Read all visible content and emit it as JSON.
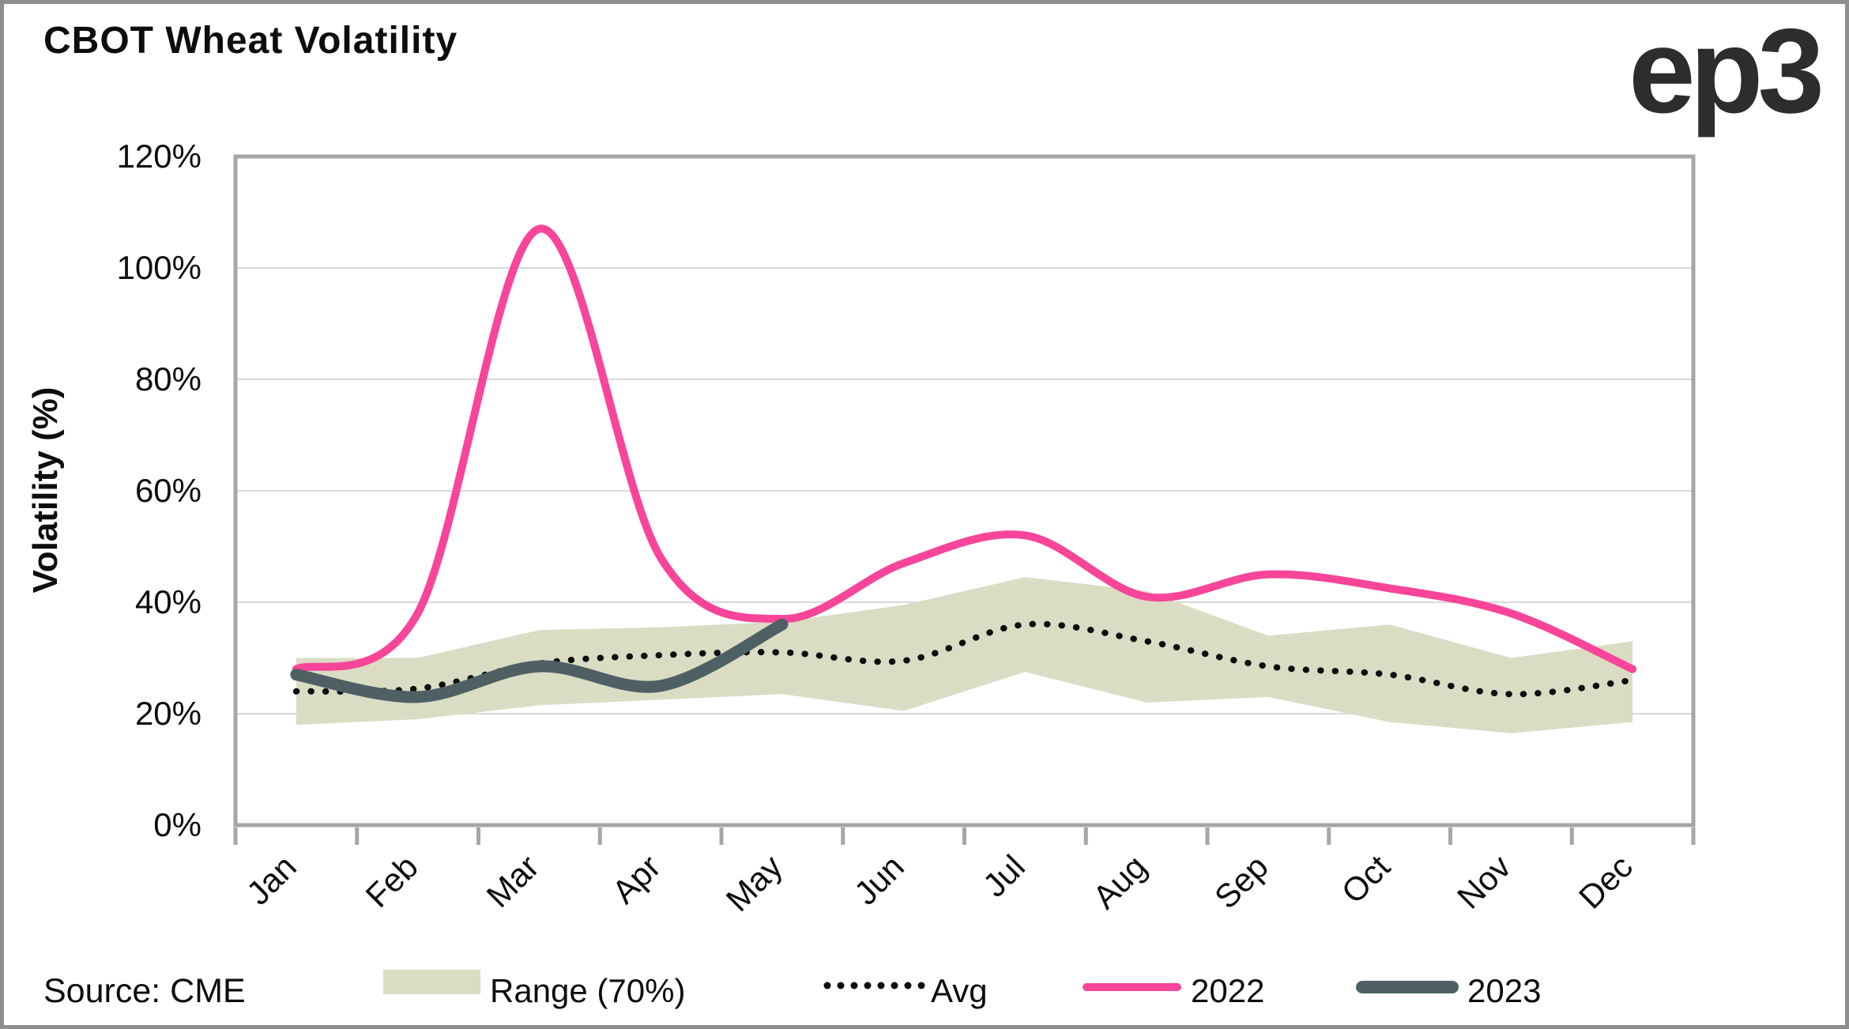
{
  "header": {
    "title": "CBOT Wheat Volatility",
    "logo": "ep3"
  },
  "footer": {
    "source": "Source: CME"
  },
  "legend": [
    {
      "label": "Range (70%)"
    },
    {
      "label": "Avg"
    },
    {
      "label": "2022"
    },
    {
      "label": "2023"
    }
  ],
  "colors": {
    "band": "#dadcc4",
    "avg": "#0d0d0d",
    "line2022": "#f8459a",
    "line2023": "#4e6064",
    "gridline": "#d9d9d9",
    "axis": "#a6a6a6",
    "border": "#8e8e8e",
    "text": "#0d0d0d",
    "logo": "#2d2d2d"
  },
  "chart_data": {
    "type": "line",
    "title": "CBOT Wheat Volatility",
    "xlabel": "",
    "ylabel": "Volatility (%)",
    "x_categories": [
      "Jan",
      "Feb",
      "Mar",
      "Apr",
      "May",
      "Jun",
      "Jul",
      "Aug",
      "Sep",
      "Oct",
      "Nov",
      "Dec"
    ],
    "y_ticks": [
      "120%",
      "100%",
      "80%",
      "60%",
      "40%",
      "20%",
      "0%"
    ],
    "ylim": [
      0,
      120
    ],
    "grid": "horizontal",
    "legend_position": "bottom",
    "series": [
      {
        "name": "Range (70%)",
        "type": "band",
        "top": [
          30,
          30,
          35,
          35.5,
          36.5,
          39.5,
          44.5,
          42,
          34,
          36,
          30,
          33
        ],
        "bottom": [
          18,
          19,
          21.5,
          22.5,
          23.5,
          20.5,
          27.5,
          22,
          23,
          18.5,
          16.5,
          18.5
        ]
      },
      {
        "name": "Avg",
        "type": "line",
        "style": "dotted",
        "values": [
          24,
          24.5,
          29,
          30.5,
          31,
          29.5,
          36,
          33,
          28.5,
          27,
          23.5,
          26
        ]
      },
      {
        "name": "2022",
        "type": "line",
        "style": "solid",
        "values": [
          28,
          38,
          107,
          48,
          37,
          47,
          52,
          41,
          45,
          42.5,
          38,
          28
        ]
      },
      {
        "name": "2023",
        "type": "line",
        "style": "solid",
        "values": [
          27,
          23,
          28.5,
          25,
          36
        ]
      }
    ]
  }
}
